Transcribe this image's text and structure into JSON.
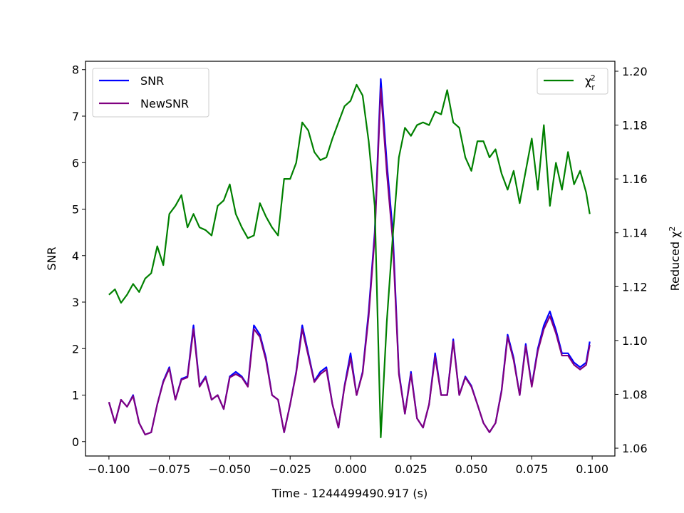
{
  "chart_data": {
    "type": "line",
    "xlabel": "Time - 1244499490.917 (s)",
    "ylabel": "SNR",
    "y2label": "Reduced χ^2",
    "x": [
      -0.1,
      -0.0975,
      -0.095,
      -0.0925,
      -0.09,
      -0.0875,
      -0.085,
      -0.0825,
      -0.08,
      -0.0775,
      -0.075,
      -0.0725,
      -0.07,
      -0.0675,
      -0.065,
      -0.0625,
      -0.06,
      -0.0575,
      -0.055,
      -0.0525,
      -0.05,
      -0.0475,
      -0.045,
      -0.0425,
      -0.04,
      -0.0375,
      -0.035,
      -0.0325,
      -0.03,
      -0.0275,
      -0.025,
      -0.0225,
      -0.02,
      -0.0175,
      -0.015,
      -0.0125,
      -0.01,
      -0.0075,
      -0.005,
      -0.0025,
      0.0,
      0.0025,
      0.005,
      0.0075,
      0.01,
      0.0125,
      0.015,
      0.0175,
      0.02,
      0.0225,
      0.025,
      0.0275,
      0.03,
      0.0325,
      0.035,
      0.0375,
      0.04,
      0.0425,
      0.045,
      0.0475,
      0.05,
      0.0525,
      0.055,
      0.0575,
      0.06,
      0.0625,
      0.065,
      0.0675,
      0.07,
      0.0725,
      0.075,
      0.0775,
      0.08,
      0.0825,
      0.085,
      0.0875,
      0.09,
      0.0925,
      0.095,
      0.0975,
      0.099
    ],
    "series": [
      {
        "name": "SNR",
        "color": "#0000ff",
        "values": [
          0.85,
          0.4,
          0.9,
          0.75,
          1.0,
          0.4,
          0.15,
          0.2,
          0.8,
          1.3,
          1.6,
          0.9,
          1.35,
          1.4,
          2.5,
          1.2,
          1.4,
          0.9,
          1.0,
          0.7,
          1.4,
          1.5,
          1.4,
          1.2,
          2.5,
          2.3,
          1.8,
          1.0,
          0.9,
          0.2,
          0.8,
          1.5,
          2.5,
          1.9,
          1.3,
          1.5,
          1.6,
          0.8,
          0.3,
          1.2,
          1.9,
          1.0,
          1.5,
          2.8,
          4.5,
          7.8,
          6.0,
          4.5,
          1.5,
          0.6,
          1.5,
          0.5,
          0.3,
          0.8,
          1.9,
          1.0,
          1.0,
          2.2,
          1.0,
          1.4,
          1.2,
          0.8,
          0.4,
          0.2,
          0.4,
          1.1,
          2.3,
          1.8,
          1.0,
          2.1,
          1.2,
          2.0,
          2.5,
          2.8,
          2.4,
          1.9,
          1.9,
          1.7,
          1.6,
          1.7,
          2.15
        ]
      },
      {
        "name": "NewSNR",
        "color": "#800080",
        "values": [
          0.85,
          0.4,
          0.9,
          0.75,
          0.98,
          0.4,
          0.15,
          0.2,
          0.8,
          1.28,
          1.57,
          0.9,
          1.33,
          1.38,
          2.42,
          1.18,
          1.38,
          0.9,
          1.0,
          0.7,
          1.38,
          1.45,
          1.38,
          1.18,
          2.42,
          2.25,
          1.75,
          1.0,
          0.9,
          0.2,
          0.8,
          1.47,
          2.42,
          1.85,
          1.28,
          1.45,
          1.55,
          0.8,
          0.3,
          1.18,
          1.8,
          1.0,
          1.47,
          2.7,
          4.4,
          7.6,
          5.8,
          4.3,
          1.45,
          0.6,
          1.45,
          0.5,
          0.3,
          0.8,
          1.82,
          1.0,
          1.0,
          2.15,
          1.0,
          1.38,
          1.18,
          0.8,
          0.4,
          0.2,
          0.4,
          1.08,
          2.25,
          1.75,
          1.0,
          2.05,
          1.18,
          1.95,
          2.42,
          2.7,
          2.33,
          1.85,
          1.85,
          1.65,
          1.55,
          1.65,
          2.08
        ]
      },
      {
        "name": "χ_r^2",
        "color": "#008000",
        "axis": "y2",
        "values": [
          1.117,
          1.119,
          1.114,
          1.117,
          1.121,
          1.118,
          1.123,
          1.125,
          1.135,
          1.128,
          1.147,
          1.15,
          1.154,
          1.142,
          1.147,
          1.142,
          1.141,
          1.139,
          1.15,
          1.152,
          1.158,
          1.147,
          1.142,
          1.138,
          1.139,
          1.151,
          1.146,
          1.142,
          1.139,
          1.16,
          1.16,
          1.166,
          1.181,
          1.178,
          1.17,
          1.167,
          1.168,
          1.175,
          1.181,
          1.187,
          1.189,
          1.195,
          1.191,
          1.174,
          1.15,
          1.064,
          1.107,
          1.139,
          1.168,
          1.179,
          1.176,
          1.18,
          1.181,
          1.18,
          1.185,
          1.184,
          1.193,
          1.181,
          1.179,
          1.168,
          1.163,
          1.174,
          1.174,
          1.168,
          1.171,
          1.162,
          1.156,
          1.163,
          1.151,
          1.163,
          1.175,
          1.156,
          1.18,
          1.15,
          1.166,
          1.156,
          1.17,
          1.158,
          1.163,
          1.155,
          1.147
        ]
      }
    ],
    "xlim": [
      -0.1097,
      0.1094
    ],
    "ylim": [
      -0.31,
      8.18
    ],
    "y2lim": [
      1.0571,
      1.2037
    ],
    "xticks": [
      {
        "value": -0.1,
        "label": "−0.100"
      },
      {
        "value": -0.075,
        "label": "−0.075"
      },
      {
        "value": -0.05,
        "label": "−0.050"
      },
      {
        "value": -0.025,
        "label": "−0.025"
      },
      {
        "value": 0,
        "label": "0.000"
      },
      0.025,
      {
        "value": 0.05,
        "label": "0.050"
      },
      0.075,
      {
        "value": 0.1,
        "label": "0.100"
      }
    ],
    "yticks": [
      0,
      1,
      2,
      3,
      4,
      5,
      6,
      7,
      8
    ],
    "y2ticks": [
      1.06,
      1.08,
      {
        "value": 1.1,
        "label": "1.10"
      },
      1.12,
      1.14,
      1.16,
      1.18,
      {
        "value": 1.2,
        "label": "1.20"
      }
    ],
    "legend": "upper left",
    "legend2": "upper right",
    "grid": false
  }
}
